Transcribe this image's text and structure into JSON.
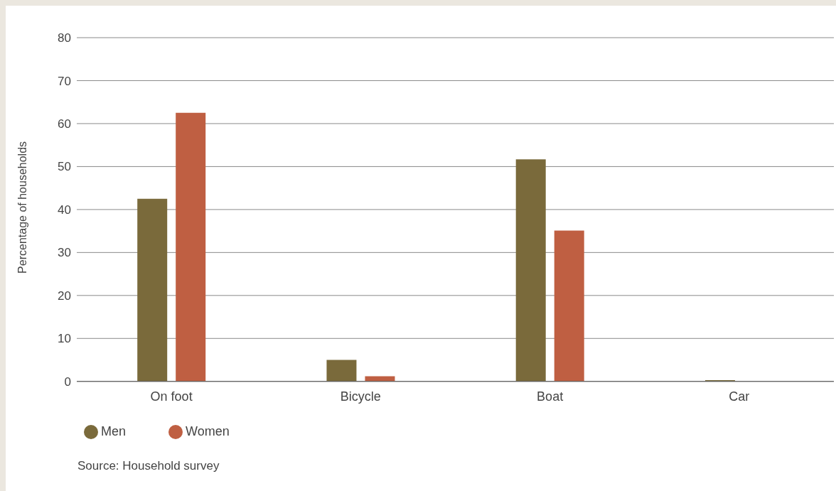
{
  "chart_data": {
    "type": "bar",
    "ylabel": "Percentage of households",
    "categories": [
      "On foot",
      "Bicycle",
      "Boat",
      "Car"
    ],
    "series": [
      {
        "name": "Men",
        "color": "#7a6a3b",
        "values": [
          42.5,
          5.0,
          51.7,
          0.3
        ]
      },
      {
        "name": "Women",
        "color": "#bf5f42",
        "values": [
          62.5,
          1.2,
          35.1,
          0
        ]
      }
    ],
    "ylim": [
      0,
      80
    ],
    "yticks": [
      0,
      10,
      20,
      30,
      40,
      50,
      60,
      70,
      80
    ],
    "grid": "y",
    "legend": "bottom left",
    "annotations": [
      "Source: Household survey"
    ]
  }
}
